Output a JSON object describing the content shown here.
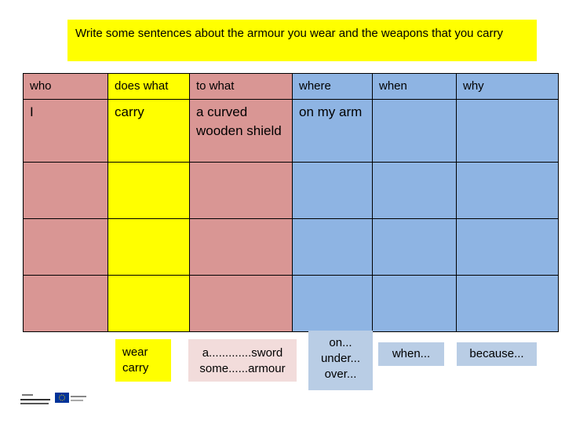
{
  "instruction": "Write some sentences about the armour you wear and the weapons that you carry",
  "columns": [
    "who",
    "does what",
    "to what",
    "where",
    "when",
    "why"
  ],
  "row1": [
    "I",
    "carry",
    "a curved wooden shield",
    "on my arm",
    "",
    ""
  ],
  "hints": {
    "does_what": [
      "wear",
      "carry"
    ],
    "to_what": [
      "a.............sword",
      "some......armour"
    ],
    "where": [
      "on...",
      "under...",
      "over..."
    ],
    "when": "when...",
    "why": "because..."
  },
  "colors": {
    "pink": "#d99694",
    "yellow": "#ffff00",
    "blue": "#8eb4e3",
    "light_pink": "#f2dcdb",
    "light_blue": "#b9cde5"
  },
  "logos": [
    "erasmus-logo",
    "eu-flag-icon"
  ]
}
